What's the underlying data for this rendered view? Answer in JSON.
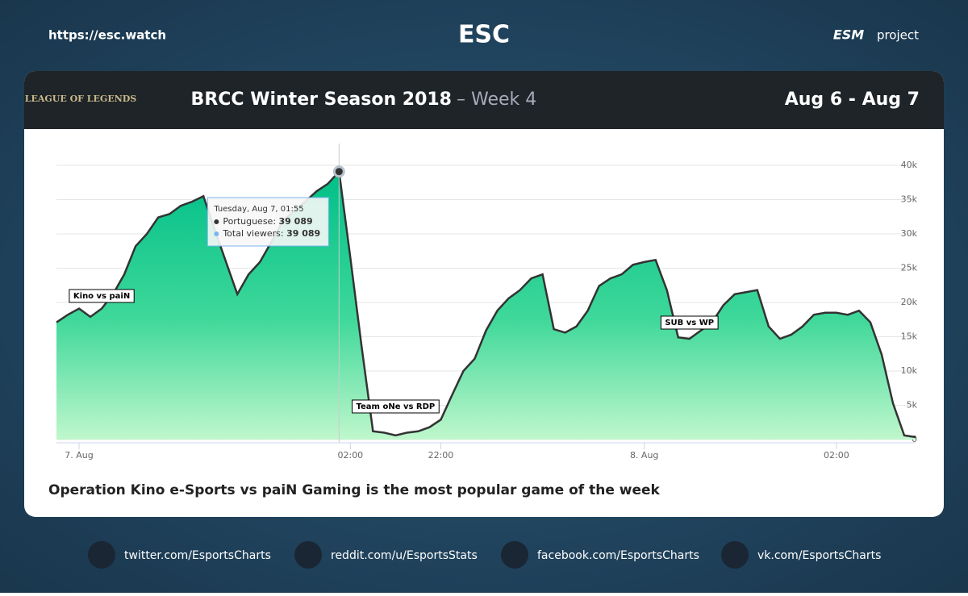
{
  "header": {
    "url": "https://esc.watch",
    "logo": "ESC",
    "brand": "ESM",
    "project": "project"
  },
  "banner": {
    "game": "LEAGUE OF LEGENDS",
    "title": "BRCC Winter Season 2018",
    "subtitle": "– Week 4",
    "dates": "Aug 6 - Aug 7"
  },
  "chart_data": {
    "type": "area",
    "categories": [
      null,
      null,
      "7. Aug",
      null,
      null,
      null,
      null,
      null,
      null,
      null,
      null,
      null,
      null,
      null,
      null,
      null,
      null,
      null,
      null,
      null,
      null,
      null,
      null,
      null,
      null,
      null,
      "02:00",
      null,
      null,
      null,
      null,
      null,
      null,
      null,
      "22:00",
      null,
      null,
      null,
      null,
      null,
      null,
      null,
      null,
      null,
      null,
      null,
      null,
      null,
      null,
      null,
      null,
      null,
      "8. Aug",
      null,
      null,
      null,
      null,
      null,
      null,
      null,
      null,
      null,
      null,
      null,
      null,
      null,
      null,
      null,
      null,
      "02:00",
      null,
      null,
      null,
      null,
      null,
      null,
      null
    ],
    "series": [
      {
        "name": "Portuguese",
        "color": "#00c48c",
        "values": [
          17100,
          18200,
          19100,
          17900,
          19100,
          21200,
          24100,
          28200,
          30000,
          32400,
          32900,
          34100,
          34700,
          35500,
          30600,
          25900,
          21200,
          24100,
          25900,
          28800,
          31800,
          33300,
          34700,
          36200,
          37300,
          39089,
          26500,
          13500,
          1200,
          1000,
          600,
          1000,
          1200,
          1800,
          2900,
          6500,
          10000,
          11800,
          15900,
          18800,
          20600,
          21800,
          23500,
          24100,
          16100,
          15600,
          16500,
          18800,
          22400,
          23500,
          24100,
          25500,
          25900,
          26200,
          21800,
          14900,
          14700,
          15900,
          17100,
          19600,
          21200,
          21500,
          21800,
          16500,
          14700,
          15300,
          16500,
          18200,
          18500,
          18500,
          18200,
          18800,
          17100,
          12400,
          5300,
          600,
          350
        ]
      }
    ],
    "ylim": [
      0,
      40000
    ],
    "yticks": [
      0,
      {
        "value": 5000,
        "label": "5k"
      },
      {
        "value": 10000,
        "label": "10k"
      },
      {
        "value": 15000,
        "label": "15k"
      },
      {
        "value": 20000,
        "label": "20k"
      },
      {
        "value": 25000,
        "label": "25k"
      },
      {
        "value": 30000,
        "label": "30k"
      },
      {
        "value": 35000,
        "label": "35k"
      },
      {
        "value": 40000,
        "label": "40k"
      }
    ],
    "grid": true,
    "annotations": [
      "Kino vs paiN",
      "Team oNe vs RDP",
      "SUB vs WP"
    ],
    "tooltip": {
      "title": "Tuesday, Aug 7, 01:55",
      "rows": [
        {
          "value": "39 089"
        },
        {
          "name": "Total viewers",
          "value": "39 089"
        }
      ]
    },
    "caption": "Operation Kino e-Sports vs paiN Gaming is the most popular game of the week"
  },
  "footer": {
    "links": [
      "twitter.com/EsportsCharts",
      "reddit.com/u/EsportsStats",
      "facebook.com/EsportsCharts",
      "vk.com/EsportsCharts"
    ]
  }
}
